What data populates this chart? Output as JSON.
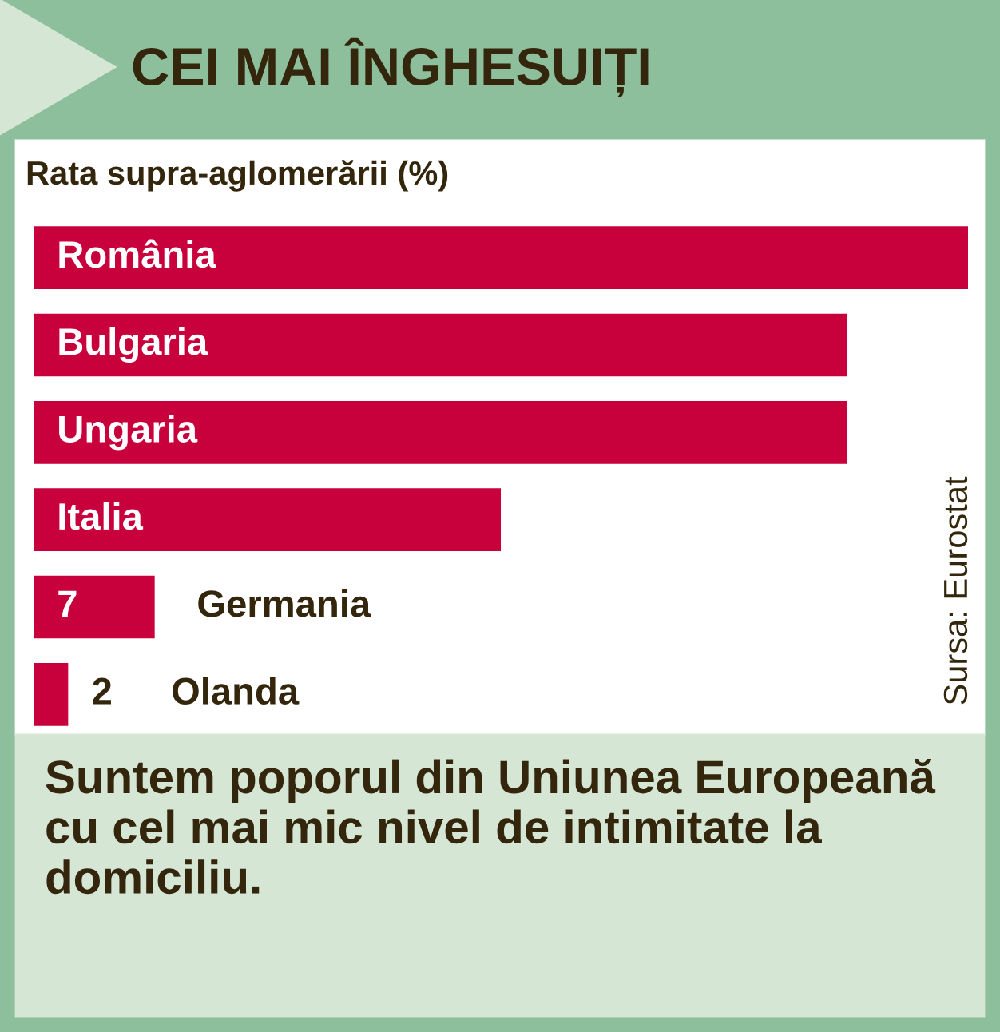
{
  "chart_data": {
    "type": "bar",
    "orientation": "horizontal",
    "title": "CEI MAI ÎNGHESUIȚI",
    "subtitle": "Rata supra-aglomerării (%)",
    "categories": [
      "România",
      "Bulgaria",
      "Ungaria",
      "Italia",
      "Germania",
      "Olanda"
    ],
    "values": [
      54,
      47,
      47,
      27,
      7,
      2
    ],
    "value_labels": [
      null,
      null,
      null,
      null,
      "7",
      "2"
    ],
    "color": "#c8003c",
    "annotations": [
      "Sursa: Eurostat",
      "Suntem poporul din Uniunea Europeană cu cel mai mic nivel de intimitate la domiciliu."
    ]
  }
}
